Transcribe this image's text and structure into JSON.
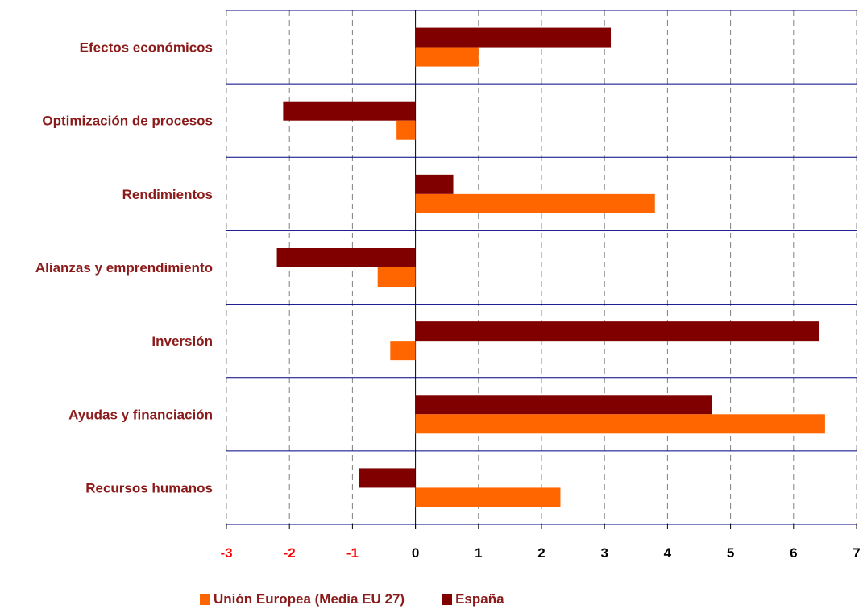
{
  "chart_data": {
    "type": "bar",
    "orientation": "horizontal",
    "categories": [
      "Efectos económicos",
      "Optimización de procesos",
      "Rendimientos",
      "Alianzas y emprendimiento",
      "Inversión",
      "Ayudas y financiación",
      "Recursos humanos"
    ],
    "series": [
      {
        "name": "España",
        "color": "#800000",
        "values": [
          3.1,
          -2.1,
          0.6,
          -2.2,
          6.4,
          4.7,
          -0.9
        ]
      },
      {
        "name": "Unión Europea (Media EU 27)",
        "color": "#FF6600",
        "values": [
          1.0,
          -0.3,
          3.8,
          -0.6,
          -0.4,
          6.5,
          2.3
        ]
      }
    ],
    "xlim": [
      -3,
      7
    ],
    "x_ticks": [
      "-3",
      "-2",
      "-1",
      "0",
      "1",
      "2",
      "3",
      "4",
      "5",
      "6",
      "7"
    ],
    "negative_tick_color": "#FF0000",
    "positive_tick_color": "#000000",
    "category_label_color": "#8B1A1A",
    "category_separator_color": "#000080",
    "grid": "vertical dashed",
    "legend_position": "bottom",
    "legend": [
      {
        "label": "Unión Europea (Media EU 27)",
        "color": "#FF6600"
      },
      {
        "label": "España",
        "color": "#800000"
      }
    ]
  }
}
